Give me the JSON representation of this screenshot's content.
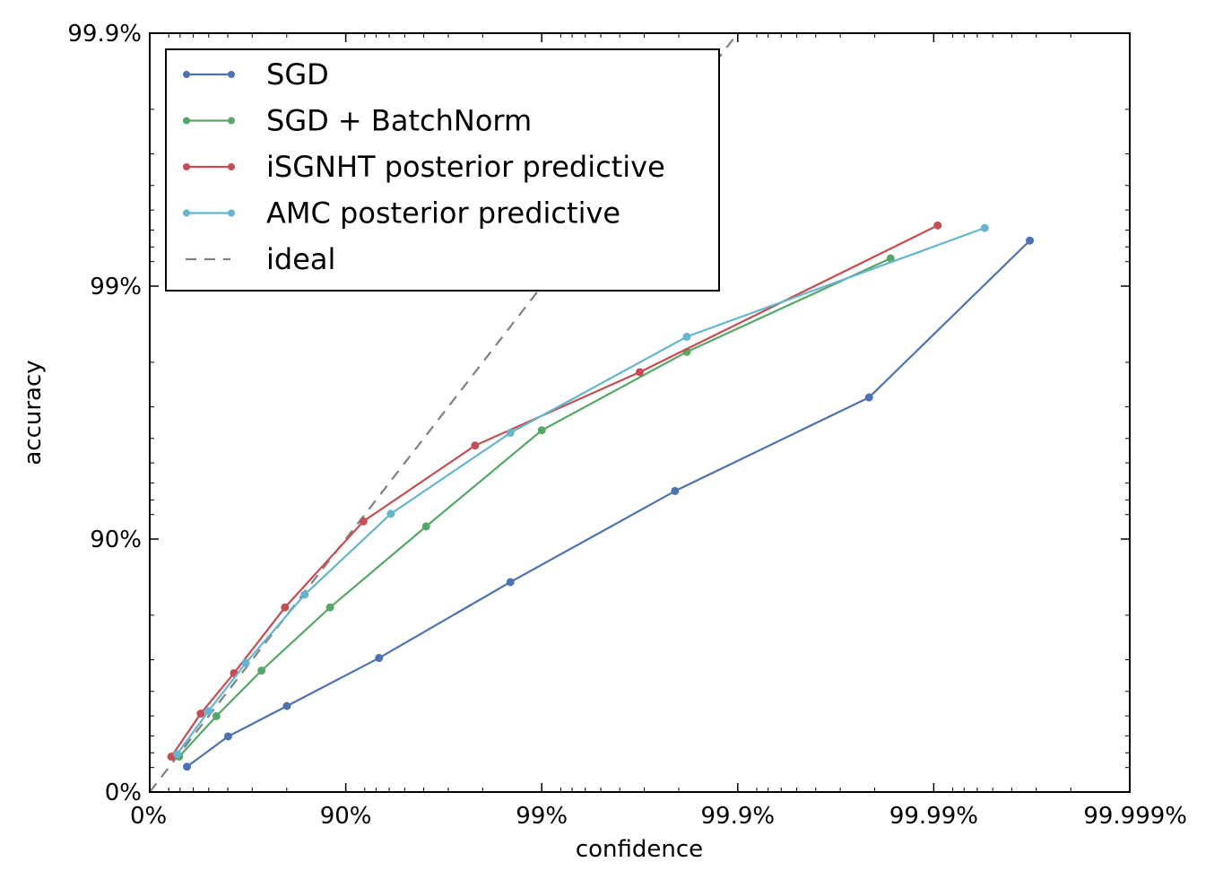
{
  "chart_data": {
    "type": "line",
    "xlabel": "confidence",
    "ylabel": "accuracy",
    "scale": "logit (-log10(1-p))",
    "xlim": [
      0,
      5
    ],
    "ylim": [
      0,
      3
    ],
    "x_ticks": [
      {
        "value": 0,
        "label": "0%"
      },
      {
        "value": 1,
        "label": "90%"
      },
      {
        "value": 2,
        "label": "99%"
      },
      {
        "value": 3,
        "label": "99.9%"
      },
      {
        "value": 4,
        "label": "99.99%"
      },
      {
        "value": 5,
        "label": "99.999%"
      }
    ],
    "y_ticks": [
      {
        "value": 0,
        "label": "0%"
      },
      {
        "value": 1,
        "label": "90%"
      },
      {
        "value": 2,
        "label": "99%"
      },
      {
        "value": 3,
        "label": "99.9%"
      }
    ],
    "legend_position": "top-left",
    "grid": false,
    "series": [
      {
        "name": "SGD",
        "color": "#4c72b0",
        "x": [
          0.19,
          0.4,
          0.7,
          1.17,
          1.84,
          2.68,
          3.67,
          4.49
        ],
        "y": [
          0.1,
          0.22,
          0.34,
          0.53,
          0.83,
          1.19,
          1.56,
          2.18
        ]
      },
      {
        "name": "SGD + BatchNorm",
        "color": "#55a868",
        "x": [
          0.15,
          0.34,
          0.57,
          0.92,
          1.41,
          2.0,
          2.74,
          3.78
        ],
        "y": [
          0.14,
          0.3,
          0.48,
          0.73,
          1.05,
          1.43,
          1.74,
          2.11
        ]
      },
      {
        "name": "iSGNHT posterior predictive",
        "color": "#c44e52",
        "x": [
          0.11,
          0.26,
          0.43,
          0.69,
          1.09,
          1.66,
          2.5,
          4.02
        ],
        "y": [
          0.14,
          0.31,
          0.47,
          0.73,
          1.07,
          1.37,
          1.66,
          2.24
        ]
      },
      {
        "name": "AMC posterior predictive",
        "color": "#64b5cd",
        "x": [
          0.14,
          0.3,
          0.49,
          0.79,
          1.23,
          1.84,
          2.74,
          4.26
        ],
        "y": [
          0.15,
          0.32,
          0.51,
          0.78,
          1.1,
          1.42,
          1.8,
          2.23
        ]
      }
    ],
    "ideal": {
      "name": "ideal",
      "color": "#808080",
      "style": "dashed",
      "x": [
        0,
        3
      ],
      "y": [
        0,
        3
      ]
    }
  }
}
